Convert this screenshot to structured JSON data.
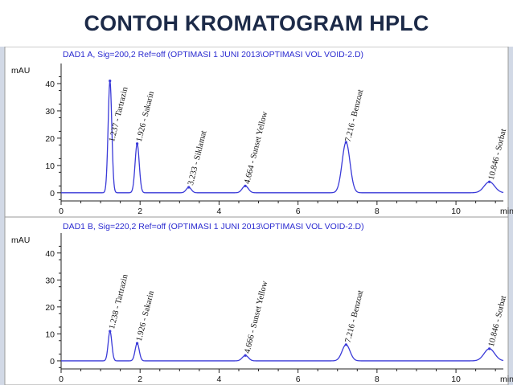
{
  "slide": {
    "title": "CONTOH KROMATOGRAM HPLC"
  },
  "colors": {
    "trace": "#3a3ad8",
    "header_text": "#2a2ad0",
    "title": "#1c2a48",
    "frame": "#d2d9e6"
  },
  "chart_data": [
    {
      "type": "line",
      "title": "DAD1 A, Sig=200,2 Ref=off (OPTIMASI 1 JUNI  2013\\OPTIMASI VOL VOID-2.D)",
      "ylabel": "mAU",
      "xlabel": "min",
      "xlim": [
        0,
        11.2
      ],
      "ylim": [
        -3,
        45
      ],
      "x_ticks": [
        0,
        2,
        4,
        6,
        8,
        10
      ],
      "y_ticks": [
        0,
        10,
        20,
        30,
        40
      ],
      "peaks": [
        {
          "rt": 1.237,
          "height": 41,
          "label": "1.237 - Tartrazin"
        },
        {
          "rt": 1.926,
          "height": 18,
          "label": "1.926 - Sakarin"
        },
        {
          "rt": 3.233,
          "height": 2,
          "label": "3.233 - Siklamat"
        },
        {
          "rt": 4.664,
          "height": 2.5,
          "label": "4.664 - Sunset Yellow"
        },
        {
          "rt": 7.216,
          "height": 18.5,
          "label": "7.216 - Benzoat"
        },
        {
          "rt": 10.846,
          "height": 4,
          "label": "10.846 - Sorbat"
        }
      ]
    },
    {
      "type": "line",
      "title": "DAD1 B, Sig=220,2 Ref=off (OPTIMASI 1 JUNI  2013\\OPTIMASI VOL VOID-2.D)",
      "ylabel": "mAU",
      "xlabel": "min",
      "xlim": [
        0,
        11.2
      ],
      "ylim": [
        -3,
        45
      ],
      "x_ticks": [
        0,
        2,
        4,
        6,
        8,
        10
      ],
      "y_ticks": [
        0,
        10,
        20,
        30,
        40
      ],
      "peaks": [
        {
          "rt": 1.238,
          "height": 11,
          "label": "1.238 - Tartrazin"
        },
        {
          "rt": 1.926,
          "height": 6.5,
          "label": "1.926 - Sakarin"
        },
        {
          "rt": 4.666,
          "height": 2,
          "label": "4.666 - Sunset Yellow"
        },
        {
          "rt": 7.216,
          "height": 6,
          "label": "7.216 - Benzoat"
        },
        {
          "rt": 10.846,
          "height": 4.5,
          "label": "10.846 - Sorbat"
        }
      ]
    }
  ]
}
